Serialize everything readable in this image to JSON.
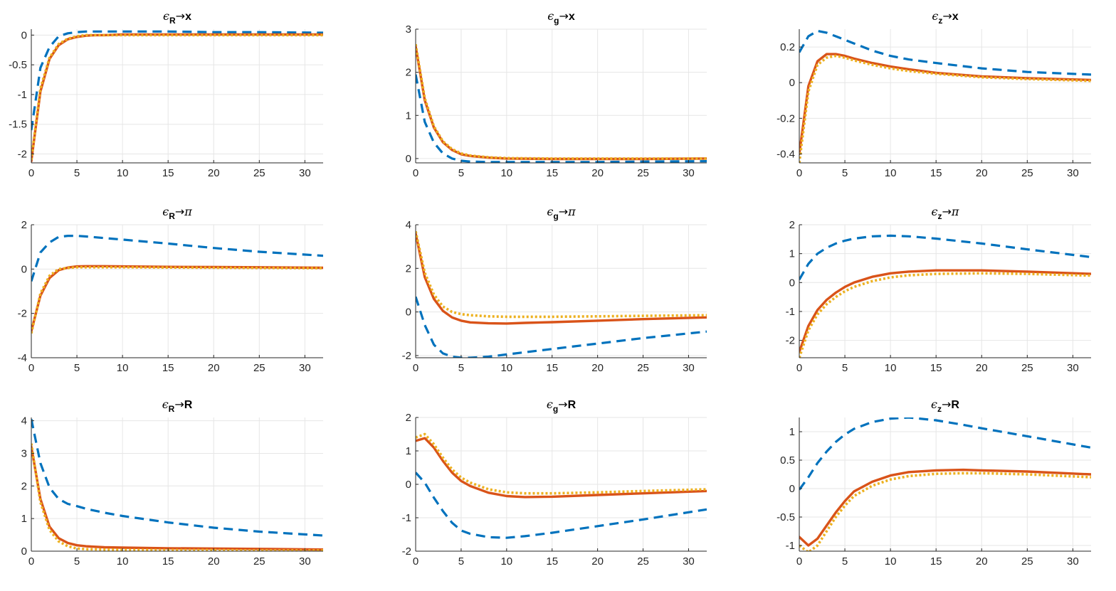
{
  "figure": {
    "layout": "3x3 grid of line plots",
    "grid": true
  },
  "colors": {
    "series_a": "#0072BD",
    "series_b": "#D95319",
    "series_c": "#EDB120",
    "grid": "#e6e6e6",
    "axis": "#262626"
  },
  "chart_data": [
    {
      "type": "line",
      "shock": "R",
      "variable": "x",
      "title": {
        "eps": "ϵ",
        "sub": "R",
        "arrow": "→",
        "var": "x"
      },
      "xlim": [
        0,
        32
      ],
      "ylim": [
        -2.15,
        0.1
      ],
      "xticks": [
        0,
        5,
        10,
        15,
        20,
        25,
        30
      ],
      "yticks": [
        -2,
        -1.5,
        -1,
        -0.5,
        0
      ],
      "ytick_labels": [
        "-2",
        "-1.5",
        "-1",
        "-0.5",
        "0"
      ],
      "x": [
        0,
        1,
        2,
        3,
        4,
        5,
        6,
        7,
        8,
        10,
        12,
        15,
        20,
        25,
        32
      ],
      "series": [
        {
          "style": "dashed",
          "values": [
            -1.6,
            -0.55,
            -0.2,
            -0.02,
            0.03,
            0.05,
            0.06,
            0.06,
            0.06,
            0.06,
            0.06,
            0.06,
            0.05,
            0.05,
            0.04
          ]
        },
        {
          "style": "solid",
          "values": [
            -2.12,
            -0.95,
            -0.4,
            -0.17,
            -0.07,
            -0.03,
            -0.01,
            0,
            0,
            0.01,
            0.01,
            0.01,
            0.01,
            0.01,
            0.01
          ]
        },
        {
          "style": "dotted",
          "values": [
            -2.1,
            -0.9,
            -0.38,
            -0.15,
            -0.06,
            -0.02,
            0,
            0,
            0,
            0,
            0,
            0,
            0,
            0,
            0
          ]
        }
      ]
    },
    {
      "type": "line",
      "shock": "g",
      "variable": "x",
      "title": {
        "eps": "ϵ",
        "sub": "g",
        "arrow": "→",
        "var": "x"
      },
      "xlim": [
        0,
        32
      ],
      "ylim": [
        -0.1,
        3
      ],
      "xticks": [
        0,
        5,
        10,
        15,
        20,
        25,
        30
      ],
      "yticks": [
        0,
        1,
        2,
        3
      ],
      "ytick_labels": [
        "0",
        "1",
        "2",
        "3"
      ],
      "x": [
        0,
        1,
        2,
        3,
        4,
        5,
        6,
        8,
        10,
        15,
        20,
        25,
        32
      ],
      "series": [
        {
          "style": "dashed",
          "values": [
            1.95,
            0.85,
            0.37,
            0.12,
            0,
            -0.05,
            -0.07,
            -0.08,
            -0.08,
            -0.08,
            -0.08,
            -0.07,
            -0.06
          ]
        },
        {
          "style": "solid",
          "values": [
            2.6,
            1.35,
            0.72,
            0.38,
            0.2,
            0.1,
            0.06,
            0.02,
            0,
            -0.01,
            -0.01,
            -0.01,
            0
          ]
        },
        {
          "style": "dotted",
          "values": [
            2.65,
            1.4,
            0.75,
            0.4,
            0.22,
            0.12,
            0.07,
            0.03,
            0.01,
            0,
            0,
            0,
            0
          ]
        }
      ]
    },
    {
      "type": "line",
      "shock": "z",
      "variable": "x",
      "title": {
        "eps": "ϵ",
        "sub": "z",
        "arrow": "→",
        "var": "x"
      },
      "xlim": [
        0,
        32
      ],
      "ylim": [
        -0.45,
        0.3
      ],
      "xticks": [
        0,
        5,
        10,
        15,
        20,
        25,
        30
      ],
      "yticks": [
        -0.4,
        -0.2,
        0,
        0.2
      ],
      "ytick_labels": [
        "-0.4",
        "-0.2",
        "0",
        "0.2"
      ],
      "x": [
        0,
        1,
        2,
        3,
        4,
        5,
        6,
        8,
        10,
        12,
        15,
        20,
        25,
        32
      ],
      "series": [
        {
          "style": "dashed",
          "values": [
            0.17,
            0.26,
            0.29,
            0.28,
            0.26,
            0.24,
            0.22,
            0.18,
            0.15,
            0.13,
            0.11,
            0.08,
            0.06,
            0.045
          ]
        },
        {
          "style": "solid",
          "values": [
            -0.4,
            -0.02,
            0.12,
            0.16,
            0.16,
            0.15,
            0.135,
            0.11,
            0.09,
            0.075,
            0.055,
            0.035,
            0.025,
            0.015
          ]
        },
        {
          "style": "dotted",
          "values": [
            -0.45,
            -0.05,
            0.1,
            0.14,
            0.15,
            0.14,
            0.125,
            0.1,
            0.08,
            0.065,
            0.05,
            0.03,
            0.02,
            0.01
          ]
        }
      ]
    },
    {
      "type": "line",
      "shock": "R",
      "variable": "pi",
      "title": {
        "eps": "ϵ",
        "sub": "R",
        "arrow": "→",
        "var": "π"
      },
      "xlim": [
        0,
        32
      ],
      "ylim": [
        -4,
        2
      ],
      "xticks": [
        0,
        5,
        10,
        15,
        20,
        25,
        30
      ],
      "yticks": [
        -4,
        -2,
        0,
        2
      ],
      "ytick_labels": [
        "-4",
        "-2",
        "0",
        "2"
      ],
      "x": [
        0,
        1,
        2,
        3,
        4,
        5,
        6,
        8,
        10,
        15,
        20,
        25,
        32
      ],
      "series": [
        {
          "style": "dashed",
          "values": [
            -0.55,
            0.75,
            1.2,
            1.45,
            1.5,
            1.5,
            1.47,
            1.4,
            1.33,
            1.15,
            0.95,
            0.78,
            0.6
          ]
        },
        {
          "style": "solid",
          "values": [
            -2.8,
            -1.2,
            -0.4,
            -0.05,
            0.07,
            0.12,
            0.13,
            0.13,
            0.12,
            0.1,
            0.09,
            0.08,
            0.06
          ]
        },
        {
          "style": "dotted",
          "values": [
            -2.9,
            -1.1,
            -0.3,
            0,
            0.05,
            0.08,
            0.08,
            0.08,
            0.08,
            0.07,
            0.06,
            0.05,
            0.04
          ]
        }
      ]
    },
    {
      "type": "line",
      "shock": "g",
      "variable": "pi",
      "title": {
        "eps": "ϵ",
        "sub": "g",
        "arrow": "→",
        "var": "π"
      },
      "xlim": [
        0,
        32
      ],
      "ylim": [
        -2.1,
        4
      ],
      "xticks": [
        0,
        5,
        10,
        15,
        20,
        25,
        30
      ],
      "yticks": [
        -2,
        0,
        2,
        4
      ],
      "ytick_labels": [
        "-2",
        "0",
        "2",
        "4"
      ],
      "x": [
        0,
        1,
        2,
        3,
        4,
        5,
        6,
        8,
        10,
        12,
        15,
        20,
        25,
        32
      ],
      "series": [
        {
          "style": "dashed",
          "values": [
            0.7,
            -0.6,
            -1.5,
            -1.9,
            -2.05,
            -2.1,
            -2.1,
            -2.05,
            -1.95,
            -1.85,
            -1.7,
            -1.45,
            -1.2,
            -0.9
          ]
        },
        {
          "style": "solid",
          "values": [
            3.6,
            1.6,
            0.6,
            0.05,
            -0.25,
            -0.4,
            -0.48,
            -0.52,
            -0.53,
            -0.5,
            -0.47,
            -0.4,
            -0.33,
            -0.25
          ]
        },
        {
          "style": "dotted",
          "values": [
            3.7,
            1.8,
            0.8,
            0.25,
            0,
            -0.1,
            -0.15,
            -0.2,
            -0.22,
            -0.22,
            -0.22,
            -0.2,
            -0.18,
            -0.15
          ]
        }
      ]
    },
    {
      "type": "line",
      "shock": "z",
      "variable": "pi",
      "title": {
        "eps": "ϵ",
        "sub": "z",
        "arrow": "→",
        "var": "π"
      },
      "xlim": [
        0,
        32
      ],
      "ylim": [
        -2.6,
        2
      ],
      "xticks": [
        0,
        5,
        10,
        15,
        20,
        25,
        30
      ],
      "yticks": [
        -2,
        -1,
        0,
        1,
        2
      ],
      "ytick_labels": [
        "-2",
        "-1",
        "0",
        "1",
        "2"
      ],
      "x": [
        0,
        1,
        2,
        3,
        4,
        5,
        6,
        8,
        10,
        12,
        15,
        20,
        25,
        32
      ],
      "series": [
        {
          "style": "dashed",
          "values": [
            0.1,
            0.65,
            1.0,
            1.2,
            1.35,
            1.45,
            1.52,
            1.6,
            1.62,
            1.6,
            1.52,
            1.35,
            1.15,
            0.88
          ]
        },
        {
          "style": "solid",
          "values": [
            -2.4,
            -1.5,
            -0.95,
            -0.6,
            -0.35,
            -0.15,
            0,
            0.2,
            0.32,
            0.38,
            0.42,
            0.42,
            0.38,
            0.3
          ]
        },
        {
          "style": "dotted",
          "values": [
            -2.6,
            -1.65,
            -1.1,
            -0.75,
            -0.5,
            -0.3,
            -0.15,
            0.05,
            0.18,
            0.25,
            0.3,
            0.32,
            0.3,
            0.24
          ]
        }
      ]
    },
    {
      "type": "line",
      "shock": "R",
      "variable": "R",
      "title": {
        "eps": "ϵ",
        "sub": "R",
        "arrow": "→",
        "var": "R"
      },
      "xlim": [
        0,
        32
      ],
      "ylim": [
        0,
        4.1
      ],
      "xticks": [
        0,
        5,
        10,
        15,
        20,
        25,
        30
      ],
      "yticks": [
        0,
        1,
        2,
        3,
        4
      ],
      "ytick_labels": [
        "0",
        "1",
        "2",
        "3",
        "4"
      ],
      "x": [
        0,
        1,
        2,
        3,
        4,
        5,
        6,
        8,
        10,
        15,
        20,
        25,
        32
      ],
      "series": [
        {
          "style": "dashed",
          "values": [
            4.05,
            2.7,
            1.95,
            1.6,
            1.45,
            1.38,
            1.3,
            1.18,
            1.08,
            0.88,
            0.72,
            0.6,
            0.48
          ]
        },
        {
          "style": "solid",
          "values": [
            3.2,
            1.6,
            0.75,
            0.4,
            0.25,
            0.18,
            0.15,
            0.12,
            0.11,
            0.09,
            0.08,
            0.07,
            0.05
          ]
        },
        {
          "style": "dotted",
          "values": [
            3.3,
            1.5,
            0.65,
            0.3,
            0.15,
            0.08,
            0.06,
            0.05,
            0.04,
            0.03,
            0.03,
            0.02,
            0.02
          ]
        }
      ]
    },
    {
      "type": "line",
      "shock": "g",
      "variable": "R",
      "title": {
        "eps": "ϵ",
        "sub": "g",
        "arrow": "→",
        "var": "R"
      },
      "xlim": [
        0,
        32
      ],
      "ylim": [
        -2,
        2
      ],
      "xticks": [
        0,
        5,
        10,
        15,
        20,
        25,
        30
      ],
      "yticks": [
        -2,
        -1,
        0,
        1,
        2
      ],
      "ytick_labels": [
        "-2",
        "-1",
        "0",
        "1",
        "2"
      ],
      "x": [
        0,
        1,
        2,
        3,
        4,
        5,
        6,
        8,
        10,
        12,
        15,
        20,
        25,
        32
      ],
      "series": [
        {
          "style": "dashed",
          "values": [
            0.35,
            0.05,
            -0.4,
            -0.8,
            -1.15,
            -1.38,
            -1.48,
            -1.58,
            -1.6,
            -1.55,
            -1.45,
            -1.25,
            -1.05,
            -0.75
          ]
        },
        {
          "style": "solid",
          "values": [
            1.3,
            1.38,
            1.1,
            0.7,
            0.35,
            0.1,
            -0.05,
            -0.25,
            -0.35,
            -0.38,
            -0.37,
            -0.32,
            -0.27,
            -0.2
          ]
        },
        {
          "style": "dotted",
          "values": [
            1.4,
            1.5,
            1.2,
            0.8,
            0.45,
            0.2,
            0.05,
            -0.15,
            -0.24,
            -0.27,
            -0.27,
            -0.24,
            -0.2,
            -0.15
          ]
        }
      ]
    },
    {
      "type": "line",
      "shock": "z",
      "variable": "R",
      "title": {
        "eps": "ϵ",
        "sub": "z",
        "arrow": "→",
        "var": "R"
      },
      "xlim": [
        0,
        32
      ],
      "ylim": [
        -1.1,
        1.25
      ],
      "xticks": [
        0,
        5,
        10,
        15,
        20,
        25,
        30
      ],
      "yticks": [
        -1,
        -0.5,
        0,
        0.5,
        1
      ],
      "ytick_labels": [
        "-1",
        "-0.5",
        "0",
        "0.5",
        "1"
      ],
      "x": [
        0,
        1,
        2,
        3,
        4,
        5,
        6,
        8,
        10,
        12,
        15,
        18,
        20,
        25,
        32
      ],
      "series": [
        {
          "style": "dashed",
          "values": [
            -0.02,
            0.2,
            0.45,
            0.65,
            0.82,
            0.95,
            1.05,
            1.17,
            1.23,
            1.25,
            1.2,
            1.12,
            1.06,
            0.92,
            0.72
          ]
        },
        {
          "style": "solid",
          "values": [
            -0.85,
            -1.0,
            -0.88,
            -0.65,
            -0.42,
            -0.22,
            -0.05,
            0.12,
            0.23,
            0.29,
            0.32,
            0.33,
            0.32,
            0.3,
            0.25
          ]
        },
        {
          "style": "dotted",
          "values": [
            -1.0,
            -1.12,
            -1.0,
            -0.75,
            -0.5,
            -0.3,
            -0.13,
            0.05,
            0.16,
            0.22,
            0.26,
            0.27,
            0.27,
            0.25,
            0.2
          ]
        }
      ]
    }
  ]
}
